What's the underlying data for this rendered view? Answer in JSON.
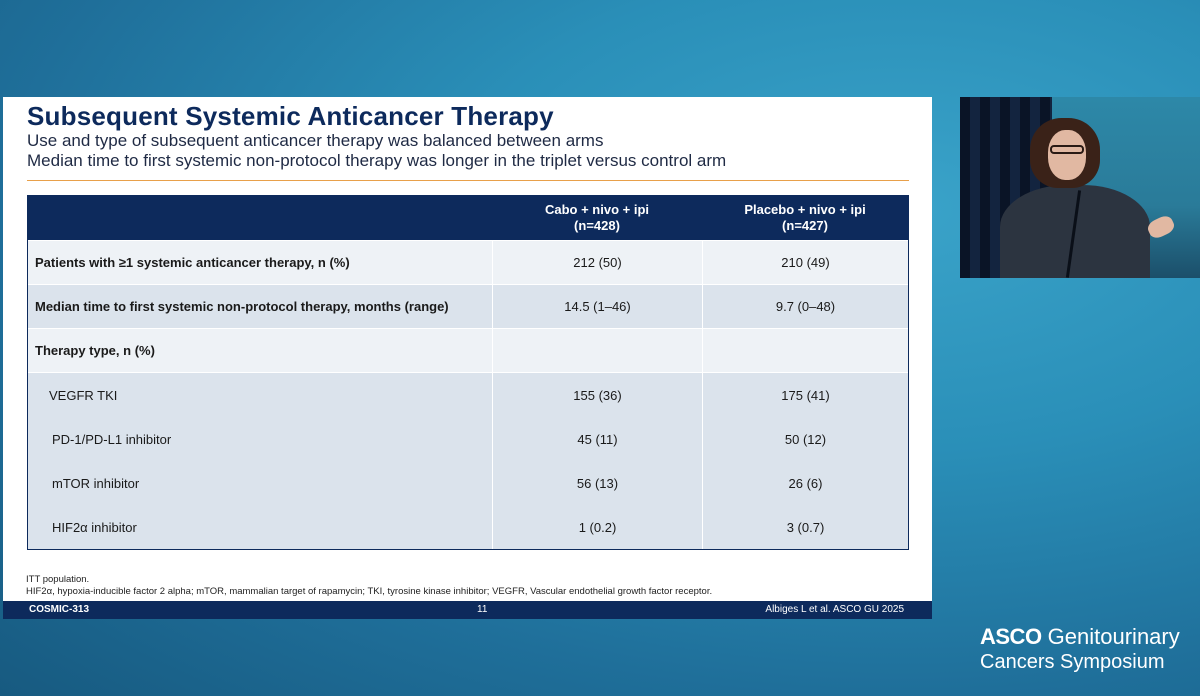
{
  "slide": {
    "title": "Subsequent Systemic Anticancer Therapy",
    "subtitle_lines": [
      "Use and type of subsequent anticancer therapy was balanced between arms",
      "Median time to first systemic non-protocol therapy was longer in the triplet versus control arm"
    ],
    "table": {
      "columns": [
        {
          "line1": "",
          "line2": ""
        },
        {
          "line1": "Cabo + nivo + ipi",
          "line2": "(n=428)"
        },
        {
          "line1": "Placebo + nivo + ipi",
          "line2": "(n=427)"
        }
      ],
      "rows": [
        {
          "label": "Patients with ≥1 systemic anticancer therapy, n (%)",
          "arm1": "212 (50)",
          "arm2": "210 (49)"
        },
        {
          "label": "Median time to first systemic non-protocol therapy, months (range)",
          "arm1": "14.5 (1–46)",
          "arm2": "9.7 (0–48)"
        },
        {
          "label": "Therapy type, n (%)",
          "arm1": "",
          "arm2": ""
        },
        {
          "label": "VEGFR TKI",
          "arm1": "155 (36)",
          "arm2": "175 (41)"
        },
        {
          "label": "PD-1/PD-L1 inhibitor",
          "arm1": "45 (11)",
          "arm2": "50 (12)"
        },
        {
          "label": "mTOR inhibitor",
          "arm1": "56 (13)",
          "arm2": "26 (6)"
        },
        {
          "label": "HIF2α inhibitor",
          "arm1": "1 (0.2)",
          "arm2": "3 (0.7)"
        }
      ]
    },
    "footnotes": [
      "ITT population.",
      "HIF2α, hypoxia-inducible factor 2 alpha; mTOR, mammalian target of rapamycin; TKI, tyrosine kinase inhibitor; VEGFR, Vascular endothelial growth factor receptor."
    ],
    "footer": {
      "study": "COSMIC-313",
      "page_number": "11",
      "citation": "Albiges L et al. ASCO GU 2025"
    }
  },
  "branding": {
    "logo_asco": "ASCO",
    "logo_rest": " Genitourinary",
    "logo_line2": "Cancers Symposium"
  },
  "colors": {
    "navy": "#0d2a5c",
    "accent_rule": "#e8a04a",
    "row_light": "#eef2f6",
    "row_dark": "#dbe3ec"
  }
}
